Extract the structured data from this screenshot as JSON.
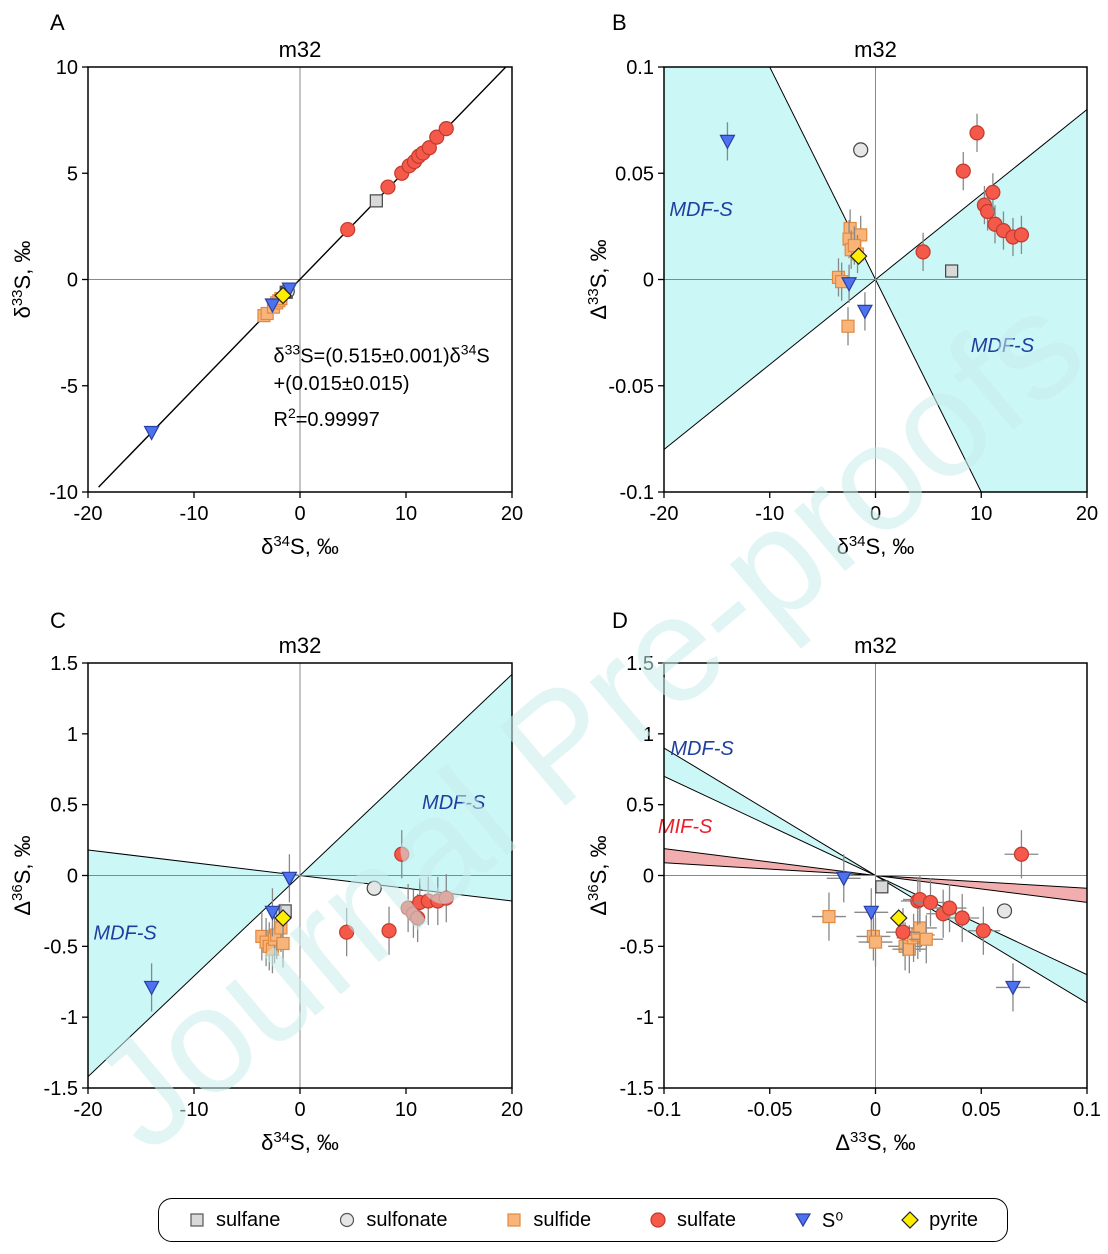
{
  "colors": {
    "mdf_fill": "#ccf7f7",
    "mif_fill": "#f2aeae",
    "mdf_label": "#1f3f9f",
    "mif_label": "#e8202a",
    "sulfane": "#d9d9d9",
    "sulfonate": "#e6e6e6",
    "sulfide": "#f9b47a",
    "sulfate": "#f5594a",
    "s0": "#4c72f0",
    "pyrite": "#ffee00"
  },
  "watermark_text": "Journal Pre-proofs",
  "legend": [
    {
      "key": "sulfane",
      "label": "sulfane",
      "icon": "square-icon"
    },
    {
      "key": "sulfonate",
      "label": "sulfonate",
      "icon": "circle-icon"
    },
    {
      "key": "sulfide",
      "label": "sulfide",
      "icon": "square-icon"
    },
    {
      "key": "sulfate",
      "label": "sulfate",
      "icon": "circle-icon"
    },
    {
      "key": "s0",
      "label": "S⁰",
      "icon": "triangle-down-icon"
    },
    {
      "key": "pyrite",
      "label": "pyrite",
      "icon": "diamond-icon"
    }
  ],
  "chart_data": [
    {
      "panel": "A",
      "type": "scatter",
      "title": "m32",
      "xlabel": "δ34S, ‰",
      "ylabel": "δ33S, ‰",
      "xlim": [
        -20,
        20
      ],
      "ylim": [
        -10,
        10
      ],
      "xticks": [
        -20,
        -10,
        0,
        10,
        20
      ],
      "yticks": [
        -10,
        -5,
        0,
        5,
        10
      ],
      "xtick_labels": [
        "-20",
        "-10",
        "0",
        "10",
        "20"
      ],
      "ytick_labels": [
        "-10",
        "-5",
        "0",
        "5",
        "10"
      ],
      "lines": [
        {
          "x": [
            -19,
            20
          ],
          "y": [
            -9.77,
            10.3
          ]
        }
      ],
      "annotations": [
        "δ33S=(0.515±0.001)δ34S",
        "+(0.015±0.015)",
        "R2=0.99997"
      ],
      "series": [
        {
          "name": "sulfane",
          "points": [
            [
              7.2,
              3.7
            ],
            [
              -1.3,
              -0.6
            ]
          ]
        },
        {
          "name": "sulfonate",
          "points": [
            [
              -1.2,
              -0.55
            ]
          ]
        },
        {
          "name": "sulfide",
          "points": [
            [
              -3.4,
              -1.7
            ],
            [
              -3.1,
              -1.6
            ],
            [
              -2.5,
              -1.3
            ],
            [
              -2.2,
              -1.1
            ],
            [
              -2.0,
              -1.0
            ],
            [
              -1.8,
              -0.9
            ]
          ]
        },
        {
          "name": "sulfate",
          "points": [
            [
              4.5,
              2.35
            ],
            [
              8.3,
              4.35
            ],
            [
              9.6,
              5.0
            ],
            [
              10.3,
              5.35
            ],
            [
              10.8,
              5.55
            ],
            [
              11.2,
              5.8
            ],
            [
              11.6,
              5.95
            ],
            [
              12.2,
              6.2
            ],
            [
              12.9,
              6.7
            ],
            [
              13.8,
              7.1
            ]
          ]
        },
        {
          "name": "s0",
          "points": [
            [
              -14.0,
              -7.2
            ],
            [
              -2.6,
              -1.2
            ],
            [
              -1.0,
              -0.45
            ]
          ]
        },
        {
          "name": "pyrite",
          "points": [
            [
              -1.6,
              -0.75
            ]
          ]
        }
      ]
    },
    {
      "panel": "B",
      "type": "scatter",
      "title": "m32",
      "xlabel": "δ34S, ‰",
      "ylabel": "Δ33S, ‰",
      "xlim": [
        -20,
        20
      ],
      "ylim": [
        -0.1,
        0.1
      ],
      "xticks": [
        -20,
        -10,
        0,
        10,
        20
      ],
      "yticks": [
        -0.1,
        -0.05,
        0,
        0.05,
        0.1
      ],
      "xtick_labels": [
        "-20",
        "-10",
        "0",
        "10",
        "20"
      ],
      "ytick_labels": [
        "-0.1",
        "-0.05",
        "0",
        "0.05",
        "0.1"
      ],
      "regions": [
        {
          "label": "MDF-S",
          "label_at": [
            -16.5,
            0.03
          ]
        },
        {
          "label": "MDF-S",
          "label_at": [
            12.0,
            -0.034
          ]
        }
      ],
      "series": [
        {
          "name": "sulfane",
          "points": [
            [
              7.2,
              0.004
            ]
          ]
        },
        {
          "name": "sulfonate",
          "points": [
            [
              -1.4,
              0.061
            ]
          ]
        },
        {
          "name": "sulfide",
          "points": [
            [
              -3.5,
              0.001
            ],
            [
              -3.2,
              -0.001
            ],
            [
              -2.4,
              0.024
            ],
            [
              -2.5,
              0.019
            ],
            [
              -2.3,
              0.014
            ],
            [
              -2.6,
              -0.022
            ],
            [
              -1.4,
              0.021
            ],
            [
              -1.7,
              0.012
            ],
            [
              -2.0,
              0.016
            ]
          ]
        },
        {
          "name": "sulfate",
          "points": [
            [
              4.5,
              0.013
            ],
            [
              8.3,
              0.051
            ],
            [
              9.6,
              0.069
            ],
            [
              10.3,
              0.035
            ],
            [
              10.6,
              0.032
            ],
            [
              11.1,
              0.041
            ],
            [
              11.3,
              0.026
            ],
            [
              12.1,
              0.023
            ],
            [
              13.0,
              0.02
            ],
            [
              13.8,
              0.021
            ]
          ]
        },
        {
          "name": "s0",
          "points": [
            [
              -14.0,
              0.065
            ],
            [
              -2.5,
              -0.002
            ],
            [
              -1.0,
              -0.015
            ]
          ]
        },
        {
          "name": "pyrite",
          "points": [
            [
              -1.6,
              0.011
            ]
          ]
        }
      ]
    },
    {
      "panel": "C",
      "type": "scatter",
      "title": "m32",
      "xlabel": "δ34S, ‰",
      "ylabel": "Δ36S, ‰",
      "xlim": [
        -20,
        20
      ],
      "ylim": [
        -1.5,
        1.5
      ],
      "xticks": [
        -20,
        -10,
        0,
        10,
        20
      ],
      "yticks": [
        -1.5,
        -1,
        -0.5,
        0,
        0.5,
        1,
        1.5
      ],
      "xtick_labels": [
        "-20",
        "-10",
        "0",
        "10",
        "20"
      ],
      "ytick_labels": [
        "-1.5",
        "-1",
        "-0.5",
        "0",
        "0.5",
        "1",
        "1.5"
      ],
      "regions": [
        {
          "label": "MDF-S",
          "label_at": [
            -16.5,
            -0.45
          ]
        },
        {
          "label": "MDF-S",
          "label_at": [
            14.5,
            0.47
          ]
        }
      ],
      "series": [
        {
          "name": "sulfane",
          "points": [
            [
              -1.4,
              -0.25
            ]
          ]
        },
        {
          "name": "sulfonate",
          "points": [
            [
              7.0,
              -0.09
            ]
          ]
        },
        {
          "name": "sulfide",
          "points": [
            [
              -3.6,
              -0.43
            ],
            [
              -3.2,
              -0.47
            ],
            [
              -2.9,
              -0.5
            ],
            [
              -2.6,
              -0.52
            ],
            [
              -2.4,
              -0.45
            ],
            [
              -2.2,
              -0.42
            ],
            [
              -1.8,
              -0.37
            ],
            [
              -1.6,
              -0.48
            ]
          ]
        },
        {
          "name": "sulfate",
          "points": [
            [
              4.4,
              -0.4
            ],
            [
              8.4,
              -0.39
            ],
            [
              9.6,
              0.15
            ],
            [
              10.2,
              -0.23
            ],
            [
              10.7,
              -0.27
            ],
            [
              11.1,
              -0.3
            ],
            [
              11.3,
              -0.19
            ],
            [
              12.1,
              -0.18
            ],
            [
              13.0,
              -0.18
            ],
            [
              13.8,
              -0.16
            ]
          ]
        },
        {
          "name": "s0",
          "points": [
            [
              -14.0,
              -0.79
            ],
            [
              -2.6,
              -0.26
            ],
            [
              -1.0,
              -0.02
            ]
          ]
        },
        {
          "name": "pyrite",
          "points": [
            [
              -1.6,
              -0.3
            ]
          ]
        }
      ]
    },
    {
      "panel": "D",
      "type": "scatter",
      "title": "m32",
      "xlabel": "Δ33S, ‰",
      "ylabel": "Δ36S, ‰",
      "xlim": [
        -0.1,
        0.1
      ],
      "ylim": [
        -1.5,
        1.5
      ],
      "xticks": [
        -0.1,
        -0.05,
        0,
        0.05,
        0.1
      ],
      "yticks": [
        -1.5,
        -1,
        -0.5,
        0,
        0.5,
        1,
        1.5
      ],
      "xtick_labels": [
        "-0.1",
        "-0.05",
        "0",
        "0.05",
        "0.1"
      ],
      "ytick_labels": [
        "-1.5",
        "-1",
        "-0.5",
        "0",
        "0.5",
        "1",
        "1.5"
      ],
      "regions": [
        {
          "label": "MDF-S",
          "label_at": [
            -0.082,
            0.85
          ]
        },
        {
          "label": "MIF-S",
          "label_at": [
            -0.09,
            0.3
          ]
        }
      ],
      "series": [
        {
          "name": "sulfane",
          "points": [
            [
              0.003,
              -0.08
            ]
          ]
        },
        {
          "name": "sulfonate",
          "points": [
            [
              0.061,
              -0.25
            ]
          ]
        },
        {
          "name": "sulfide",
          "points": [
            [
              -0.022,
              -0.29
            ],
            [
              -0.001,
              -0.43
            ],
            [
              0.0,
              -0.47
            ],
            [
              0.014,
              -0.5
            ],
            [
              0.016,
              -0.52
            ],
            [
              0.018,
              -0.44
            ],
            [
              0.02,
              -0.42
            ],
            [
              0.021,
              -0.37
            ],
            [
              0.024,
              -0.45
            ]
          ]
        },
        {
          "name": "sulfate",
          "points": [
            [
              0.013,
              -0.4
            ],
            [
              0.02,
              -0.18
            ],
            [
              0.021,
              -0.17
            ],
            [
              0.026,
              -0.19
            ],
            [
              0.032,
              -0.27
            ],
            [
              0.035,
              -0.23
            ],
            [
              0.041,
              -0.3
            ],
            [
              0.051,
              -0.39
            ],
            [
              0.069,
              0.15
            ]
          ]
        },
        {
          "name": "s0",
          "points": [
            [
              -0.015,
              -0.02
            ],
            [
              -0.002,
              -0.26
            ],
            [
              0.065,
              -0.79
            ]
          ]
        },
        {
          "name": "pyrite",
          "points": [
            [
              0.011,
              -0.3
            ]
          ]
        }
      ]
    }
  ]
}
